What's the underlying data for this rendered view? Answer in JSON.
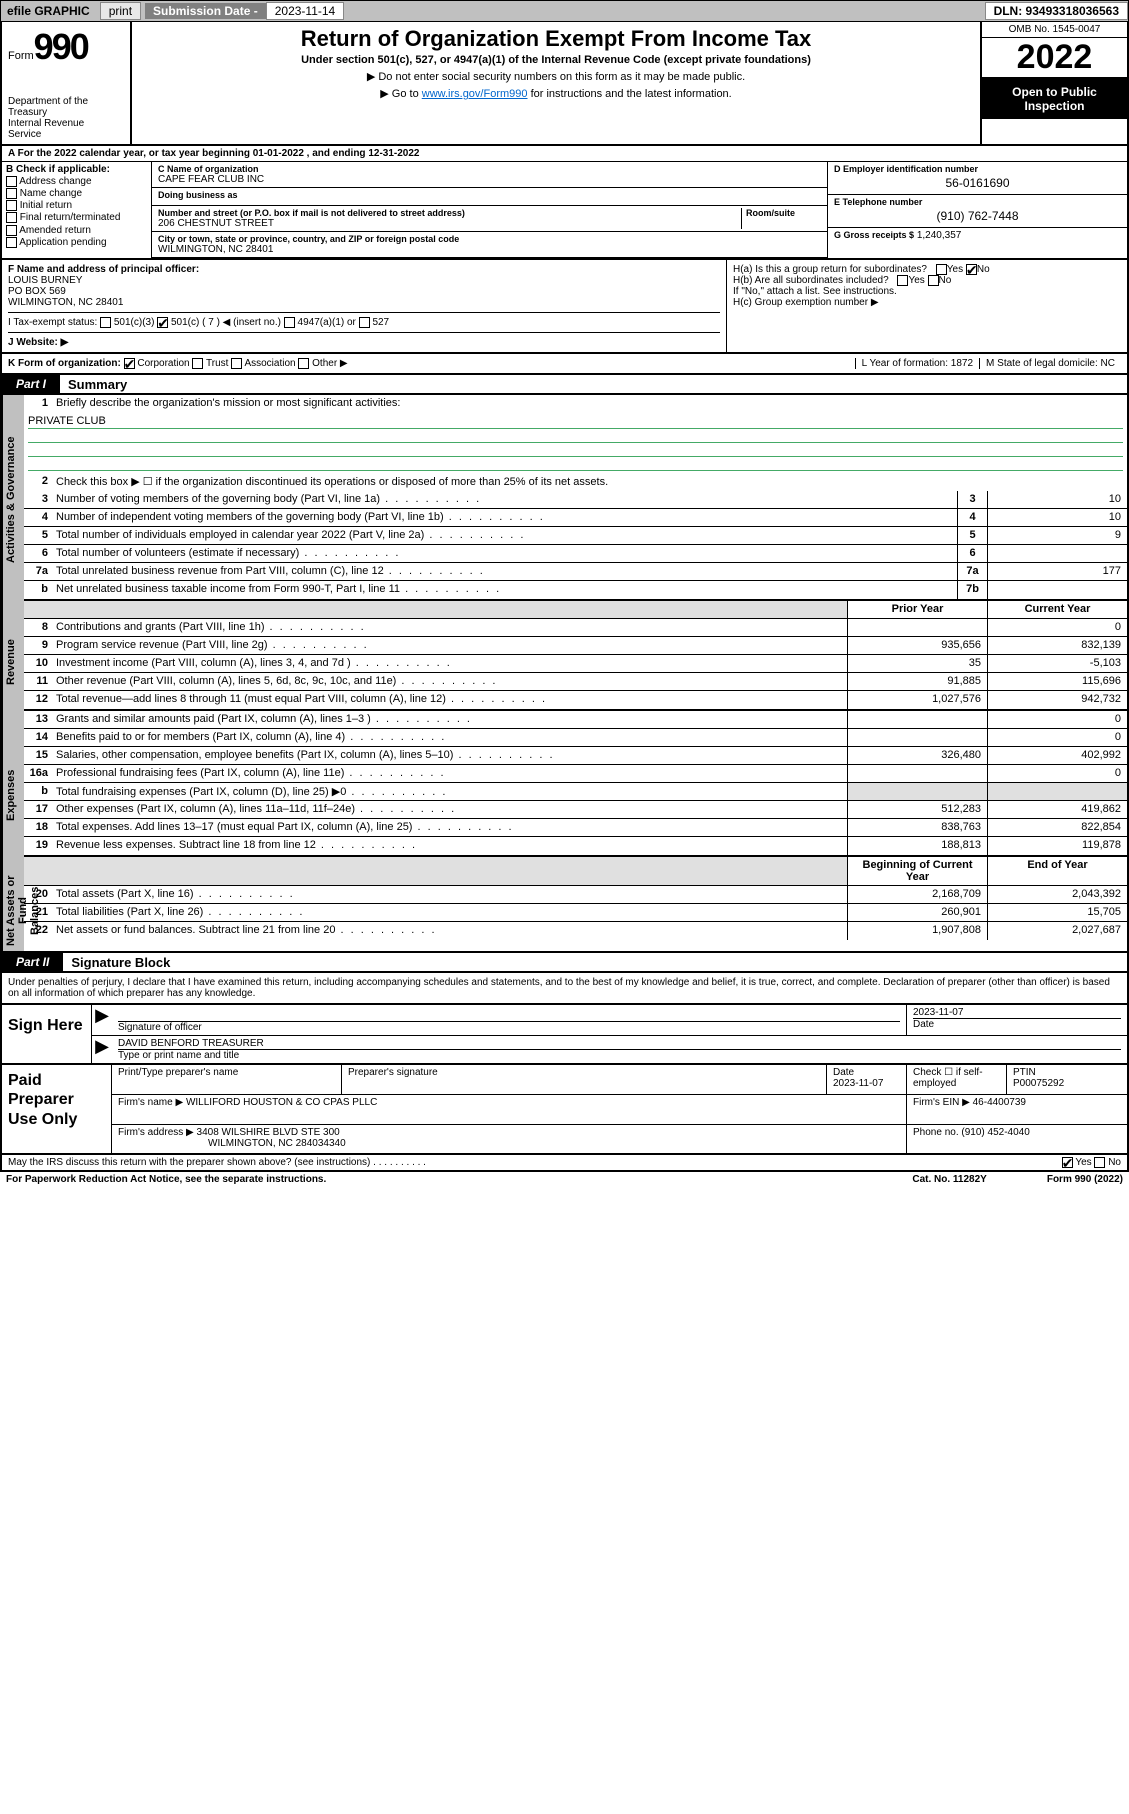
{
  "topbar": {
    "efile": "efile GRAPHIC",
    "print": "print",
    "sub_label": "Submission Date - 2023-11-14",
    "dln": "DLN: 93493318036563"
  },
  "header": {
    "form_word": "Form",
    "form_num": "990",
    "title": "Return of Organization Exempt From Income Tax",
    "subtitle": "Under section 501(c), 527, or 4947(a)(1) of the Internal Revenue Code (except private foundations)",
    "note1": "▶ Do not enter social security numbers on this form as it may be made public.",
    "note2_pre": "▶ Go to ",
    "note2_link": "www.irs.gov/Form990",
    "note2_post": " for instructions and the latest information.",
    "dept": "Department of the Treasury\nInternal Revenue Service",
    "omb": "OMB No. 1545-0047",
    "year": "2022",
    "inspection": "Open to Public Inspection"
  },
  "period": {
    "line": "A For the 2022 calendar year, or tax year beginning 01-01-2022    , and ending 12-31-2022"
  },
  "boxB": {
    "label": "B Check if applicable:",
    "opts": [
      "Address change",
      "Name change",
      "Initial return",
      "Final return/terminated",
      "Amended return",
      "Application pending"
    ]
  },
  "boxC": {
    "name_lbl": "C Name of organization",
    "name": "CAPE FEAR CLUB INC",
    "dba_lbl": "Doing business as",
    "dba": "",
    "addr_lbl": "Number and street (or P.O. box if mail is not delivered to street address)",
    "room_lbl": "Room/suite",
    "addr": "206 CHESTNUT STREET",
    "city_lbl": "City or town, state or province, country, and ZIP or foreign postal code",
    "city": "WILMINGTON, NC  28401"
  },
  "boxD": {
    "lbl": "D Employer identification number",
    "val": "56-0161690"
  },
  "boxE": {
    "lbl": "E Telephone number",
    "val": "(910) 762-7448"
  },
  "boxG": {
    "lbl": "G Gross receipts $",
    "val": "1,240,357"
  },
  "boxF": {
    "lbl": "F Name and address of principal officer:",
    "name": "LOUIS BURNEY",
    "pobox": "PO BOX 569",
    "city": "WILMINGTON, NC  28401"
  },
  "boxI": {
    "lbl": "I    Tax-exempt status:",
    "opts": [
      "501(c)(3)",
      "501(c) ( 7 ) ◀ (insert no.)",
      "4947(a)(1) or",
      "527"
    ]
  },
  "boxJ": {
    "lbl": "J    Website: ▶",
    "val": ""
  },
  "boxH": {
    "a": "H(a)  Is this a group return for subordinates?",
    "b": "H(b)  Are all subordinates included?",
    "bnote": "If \"No,\" attach a list. See instructions.",
    "c": "H(c)  Group exemption number ▶"
  },
  "boxK": {
    "lbl": "K Form of organization:",
    "opts": [
      "Corporation",
      "Trust",
      "Association",
      "Other ▶"
    ],
    "L": "L Year of formation: 1872",
    "M": "M State of legal domicile: NC"
  },
  "part1": {
    "tab": "Part I",
    "title": "Summary"
  },
  "summary": {
    "vtabs": [
      "Activities & Governance",
      "Revenue",
      "Expenses",
      "Net Assets or Fund Balances"
    ],
    "line1": "Briefly describe the organization's mission or most significant activities:",
    "mission": "PRIVATE CLUB",
    "line2": "Check this box ▶ ☐  if the organization discontinued its operations or disposed of more than 25% of its net assets.",
    "hdr_prior": "Prior Year",
    "hdr_curr": "Current Year",
    "hdr_boy": "Beginning of Current Year",
    "hdr_eoy": "End of Year",
    "rows_gov": [
      {
        "n": "3",
        "d": "Number of voting members of the governing body (Part VI, line 1a)",
        "box": "3",
        "v": "10"
      },
      {
        "n": "4",
        "d": "Number of independent voting members of the governing body (Part VI, line 1b)",
        "box": "4",
        "v": "10"
      },
      {
        "n": "5",
        "d": "Total number of individuals employed in calendar year 2022 (Part V, line 2a)",
        "box": "5",
        "v": "9"
      },
      {
        "n": "6",
        "d": "Total number of volunteers (estimate if necessary)",
        "box": "6",
        "v": ""
      },
      {
        "n": "7a",
        "d": "Total unrelated business revenue from Part VIII, column (C), line 12",
        "box": "7a",
        "v": "177"
      },
      {
        "n": "b",
        "d": "Net unrelated business taxable income from Form 990-T, Part I, line 11",
        "box": "7b",
        "v": ""
      }
    ],
    "rows_rev": [
      {
        "n": "8",
        "d": "Contributions and grants (Part VIII, line 1h)",
        "p": "",
        "c": "0"
      },
      {
        "n": "9",
        "d": "Program service revenue (Part VIII, line 2g)",
        "p": "935,656",
        "c": "832,139"
      },
      {
        "n": "10",
        "d": "Investment income (Part VIII, column (A), lines 3, 4, and 7d )",
        "p": "35",
        "c": "-5,103"
      },
      {
        "n": "11",
        "d": "Other revenue (Part VIII, column (A), lines 5, 6d, 8c, 9c, 10c, and 11e)",
        "p": "91,885",
        "c": "115,696"
      },
      {
        "n": "12",
        "d": "Total revenue—add lines 8 through 11 (must equal Part VIII, column (A), line 12)",
        "p": "1,027,576",
        "c": "942,732"
      }
    ],
    "rows_exp": [
      {
        "n": "13",
        "d": "Grants and similar amounts paid (Part IX, column (A), lines 1–3 )",
        "p": "",
        "c": "0"
      },
      {
        "n": "14",
        "d": "Benefits paid to or for members (Part IX, column (A), line 4)",
        "p": "",
        "c": "0"
      },
      {
        "n": "15",
        "d": "Salaries, other compensation, employee benefits (Part IX, column (A), lines 5–10)",
        "p": "326,480",
        "c": "402,992"
      },
      {
        "n": "16a",
        "d": "Professional fundraising fees (Part IX, column (A), line 11e)",
        "p": "",
        "c": "0"
      },
      {
        "n": "b",
        "d": "Total fundraising expenses (Part IX, column (D), line 25) ▶0",
        "p": "",
        "c": "",
        "shade": true
      },
      {
        "n": "17",
        "d": "Other expenses (Part IX, column (A), lines 11a–11d, 11f–24e)",
        "p": "512,283",
        "c": "419,862"
      },
      {
        "n": "18",
        "d": "Total expenses. Add lines 13–17 (must equal Part IX, column (A), line 25)",
        "p": "838,763",
        "c": "822,854"
      },
      {
        "n": "19",
        "d": "Revenue less expenses. Subtract line 18 from line 12",
        "p": "188,813",
        "c": "119,878"
      }
    ],
    "rows_net": [
      {
        "n": "20",
        "d": "Total assets (Part X, line 16)",
        "p": "2,168,709",
        "c": "2,043,392"
      },
      {
        "n": "21",
        "d": "Total liabilities (Part X, line 26)",
        "p": "260,901",
        "c": "15,705"
      },
      {
        "n": "22",
        "d": "Net assets or fund balances. Subtract line 21 from line 20",
        "p": "1,907,808",
        "c": "2,027,687"
      }
    ]
  },
  "part2": {
    "tab": "Part II",
    "title": "Signature Block"
  },
  "sig": {
    "intro": "Under penalties of perjury, I declare that I have examined this return, including accompanying schedules and statements, and to the best of my knowledge and belief, it is true, correct, and complete. Declaration of preparer (other than officer) is based on all information of which preparer has any knowledge.",
    "sign_here": "Sign Here",
    "sig_officer": "Signature of officer",
    "date_lbl": "Date",
    "date": "2023-11-07",
    "typed": "DAVID BENFORD TREASURER",
    "typed_lbl": "Type or print name and title"
  },
  "paid": {
    "lbl": "Paid Preparer Use Only",
    "h1": "Print/Type preparer's name",
    "h2": "Preparer's signature",
    "h3": "Date",
    "date": "2023-11-07",
    "h4": "Check ☐ if self-employed",
    "h5": "PTIN",
    "ptin": "P00075292",
    "firm_name_lbl": "Firm's name    ▶",
    "firm_name": "WILLIFORD HOUSTON & CO CPAS PLLC",
    "firm_ein_lbl": "Firm's EIN ▶",
    "firm_ein": "46-4400739",
    "firm_addr_lbl": "Firm's address ▶",
    "firm_addr": "3408 WILSHIRE BLVD STE 300",
    "firm_city": "WILMINGTON, NC  284034340",
    "phone_lbl": "Phone no.",
    "phone": "(910) 452-4040"
  },
  "footer": {
    "discuss": "May the IRS discuss this return with the preparer shown above? (see instructions)",
    "yes": "Yes",
    "no": "No",
    "pra": "For Paperwork Reduction Act Notice, see the separate instructions.",
    "cat": "Cat. No. 11282Y",
    "formno": "Form 990 (2022)"
  }
}
